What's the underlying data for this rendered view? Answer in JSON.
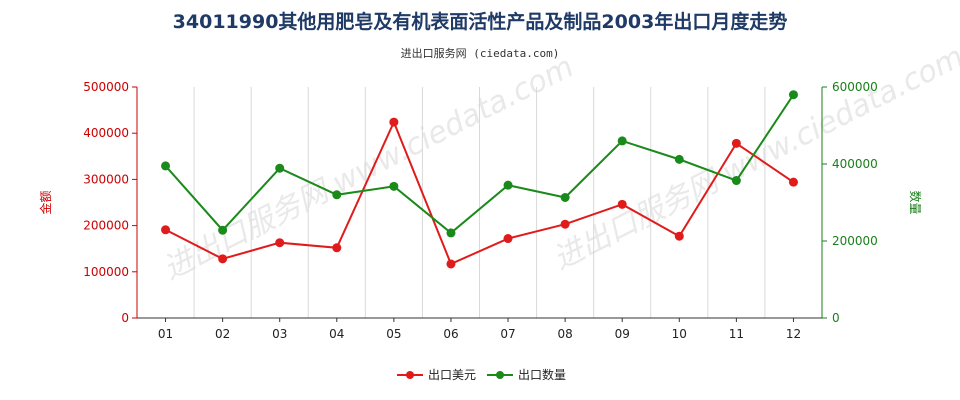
{
  "title": "34011990其他用肥皂及有机表面活性产品及制品2003年出口月度走势",
  "subtitle": "进出口服务网 (ciedata.com)",
  "watermark": "进出口服务网 www.ciedata.com",
  "chart_data": {
    "type": "line",
    "categories": [
      "01",
      "02",
      "03",
      "04",
      "05",
      "06",
      "07",
      "08",
      "09",
      "10",
      "11",
      "12"
    ],
    "series": [
      {
        "name": "出口美元",
        "axis": "left",
        "color": "#e01b1b",
        "values": [
          191000,
          128000,
          163000,
          152000,
          424000,
          117000,
          172000,
          203000,
          246000,
          177000,
          378000,
          294000
        ]
      },
      {
        "name": "出口数量",
        "axis": "right",
        "color": "#1a8a1a",
        "values": [
          395000,
          228000,
          389000,
          320000,
          342000,
          221000,
          345000,
          313000,
          460000,
          412000,
          357000,
          580000
        ]
      }
    ],
    "y_left": {
      "label": "金额",
      "min": 0,
      "max": 500000,
      "ticks": [
        0,
        100000,
        200000,
        300000,
        400000,
        500000
      ]
    },
    "y_right": {
      "label": "数量",
      "min": 0,
      "max": 600000,
      "ticks": [
        0,
        200000,
        400000,
        600000
      ]
    },
    "grid": "vertical",
    "legend_position": "bottom-center"
  }
}
